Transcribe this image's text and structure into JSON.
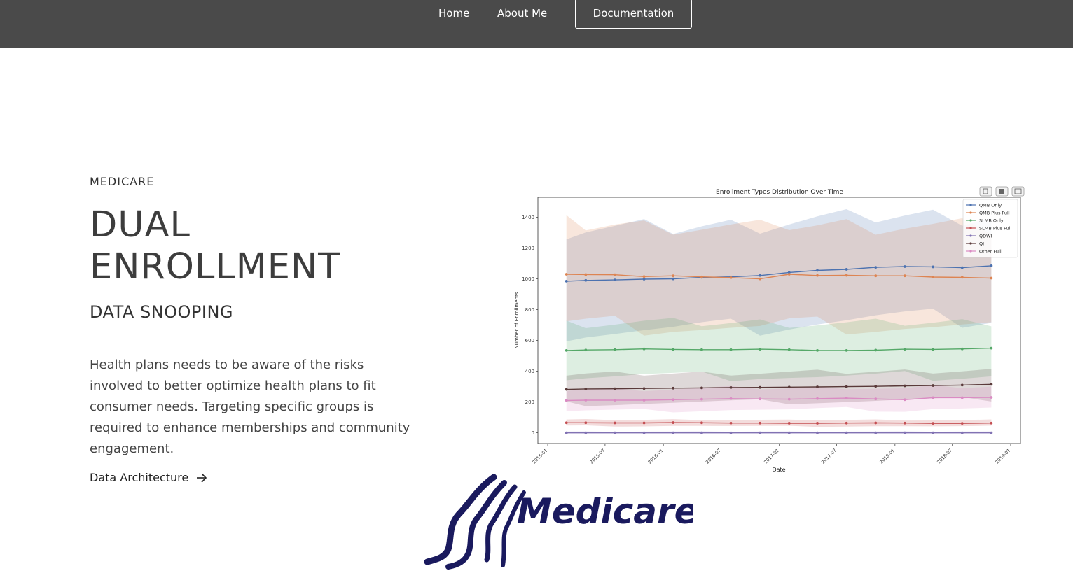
{
  "nav": {
    "home": "Home",
    "about": "About Me",
    "documentation": "Documentation"
  },
  "hero": {
    "eyebrow": "MEDICARE",
    "title_line1": "DUAL",
    "title_line2": "ENROLLMENT",
    "subtitle": "DATA SNOOPING",
    "description": "Health plans needs to be aware of the risks involved to better optimize health plans to fit consumer needs. Targeting specific groups is required to enhance memberships and community engagement.",
    "link_label": "Data Architecture"
  },
  "logo": {
    "text": "Medicare",
    "color": "#1a1a5e"
  },
  "chart_data": {
    "type": "line",
    "title": "Enrollment Types Distribution Over Time",
    "xlabel": "Date",
    "ylabel": "Number of Enrollments",
    "ylim": [
      -70,
      1530
    ],
    "yticks": [
      0,
      200,
      400,
      600,
      800,
      1000,
      1200,
      1400
    ],
    "x": [
      "2015-03",
      "2015-05",
      "2015-08",
      "2015-11",
      "2016-02",
      "2016-05",
      "2016-08",
      "2016-11",
      "2017-02",
      "2017-05",
      "2017-08",
      "2017-11",
      "2018-02",
      "2018-05",
      "2018-08",
      "2018-11"
    ],
    "xticks": [
      "2015-01",
      "2015-07",
      "2016-01",
      "2016-07",
      "2017-01",
      "2017-07",
      "2018-01",
      "2018-07",
      "2019-01"
    ],
    "legend_position": "top-right",
    "series": [
      {
        "name": "QMB Only",
        "color": "#4c72b0",
        "values": [
          985,
          990,
          993,
          998,
          1000,
          1010,
          1013,
          1022,
          1042,
          1055,
          1062,
          1075,
          1080,
          1078,
          1073,
          1085
        ]
      },
      {
        "name": "QMB Plus Full",
        "color": "#dd8452",
        "values": [
          1030,
          1028,
          1027,
          1015,
          1020,
          1013,
          1008,
          1000,
          1030,
          1022,
          1023,
          1020,
          1020,
          1012,
          1010,
          1005
        ]
      },
      {
        "name": "SLMB Only",
        "color": "#55a868",
        "values": [
          535,
          538,
          540,
          545,
          542,
          540,
          540,
          543,
          540,
          535,
          535,
          537,
          543,
          542,
          545,
          550
        ]
      },
      {
        "name": "SLMB Plus Full",
        "color": "#c44e52",
        "values": [
          65,
          65,
          64,
          64,
          66,
          65,
          63,
          63,
          62,
          62,
          63,
          64,
          63,
          61,
          61,
          63
        ]
      },
      {
        "name": "QDWI",
        "color": "#8172b3",
        "values": [
          0,
          0,
          0,
          0,
          0,
          0,
          0,
          0,
          0,
          0,
          0,
          0,
          0,
          0,
          0,
          0
        ]
      },
      {
        "name": "QI",
        "color": "#5a3a3a",
        "values": [
          282,
          285,
          286,
          288,
          290,
          292,
          294,
          295,
          297,
          298,
          300,
          302,
          305,
          307,
          310,
          315
        ]
      },
      {
        "name": "Other Full",
        "color": "#da8bc3",
        "values": [
          210,
          212,
          212,
          212,
          215,
          218,
          222,
          220,
          218,
          222,
          225,
          220,
          215,
          228,
          228,
          230
        ]
      }
    ]
  }
}
